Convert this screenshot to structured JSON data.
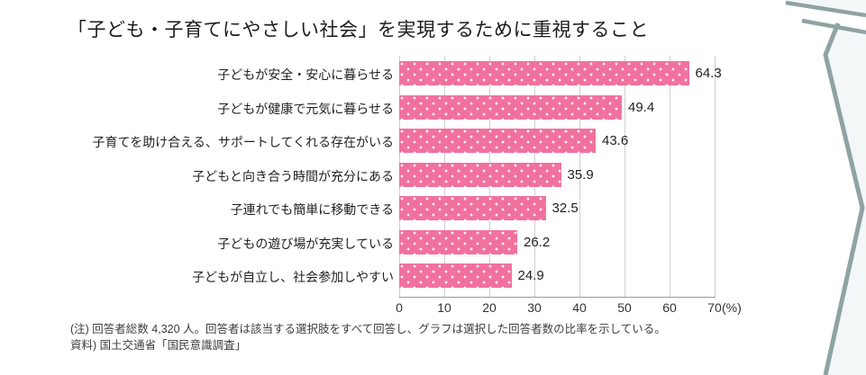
{
  "title": "「子ども・子育てにやさしい社会」を実現するために重視すること",
  "chart_data": {
    "type": "bar",
    "orientation": "horizontal",
    "title": "「子ども・子育てにやさしい社会」を実現するために重視すること",
    "categories": [
      "子どもが安全・安心に暮らせる",
      "子どもが健康で元気に暮らせる",
      "子育てを助け合える、サポートしてくれる存在がいる",
      "子どもと向き合う時間が充分にある",
      "子連れでも簡単に移動できる",
      "子どもの遊び場が充実している",
      "子どもが自立し、社会参加しやすい"
    ],
    "values": [
      64.3,
      49.4,
      43.6,
      35.9,
      32.5,
      26.2,
      24.9
    ],
    "xlabel": "",
    "ylabel": "",
    "xlim": [
      0,
      70
    ],
    "xticks": [
      0,
      10,
      20,
      30,
      40,
      50,
      60,
      70
    ],
    "unit_label": "(%)",
    "grid": true,
    "legend": false,
    "bar_color": "#F1719E",
    "bar_pattern": "white-polka-dots"
  },
  "footnotes": [
    "(注) 回答者総数 4,320 人。回答者は該当する選択肢をすべて回答し、グラフは選択した回答者数の比率を示している。",
    "資料) 国土交通省「国民意識調査」"
  ],
  "decoration": {
    "chevron_color": "#8FA3A4",
    "tint_color": "#F3F7F7"
  }
}
